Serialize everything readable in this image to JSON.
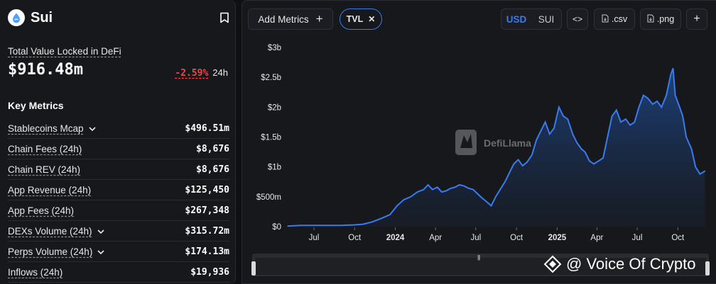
{
  "sidebar": {
    "chain_name": "Sui",
    "tvl_label": "Total Value Locked in DeFi",
    "tvl_value": "$916.48m",
    "tvl_change": "-2.59%",
    "tvl_change_period": "24h",
    "key_metrics_title": "Key Metrics",
    "metrics": [
      {
        "name": "Stablecoins Mcap",
        "value": "$496.51m",
        "expandable": true
      },
      {
        "name": "Chain Fees (24h)",
        "value": "$8,676",
        "expandable": false
      },
      {
        "name": "Chain REV (24h)",
        "value": "$8,676",
        "expandable": false
      },
      {
        "name": "App Revenue (24h)",
        "value": "$125,450",
        "expandable": false
      },
      {
        "name": "App Fees (24h)",
        "value": "$267,348",
        "expandable": false
      },
      {
        "name": "DEXs Volume (24h)",
        "value": "$315.72m",
        "expandable": true
      },
      {
        "name": "Perps Volume (24h)",
        "value": "$174.13m",
        "expandable": true
      },
      {
        "name": "Inflows (24h)",
        "value": "$19,936",
        "expandable": false
      }
    ]
  },
  "toolbar": {
    "add_metrics_label": "Add Metrics",
    "active_metric": "TVL",
    "currency_usd": "USD",
    "currency_sui": "SUI",
    "code_label": "<>",
    "csv_label": ".csv",
    "png_label": ".png",
    "more_label": "+"
  },
  "watermarks": {
    "chart_brand": "DefiLlama",
    "overlay_text": "@ Voice Of Crypto"
  },
  "colors": {
    "accent": "#3a7bf0",
    "negative": "#f0454b",
    "panel_bg": "#17181c",
    "page_bg": "#0f1012"
  },
  "chart_data": {
    "type": "area",
    "title": "",
    "xlabel": "",
    "ylabel": "",
    "y_ticks": [
      "$0",
      "$500m",
      "$1b",
      "$1.5b",
      "$2b",
      "$2.5b",
      "$3b"
    ],
    "ylim": [
      0,
      3.0
    ],
    "y_unit": "billions USD",
    "x_ticks": [
      "Jul",
      "Oct",
      "2024",
      "Apr",
      "Jul",
      "Oct",
      "2025",
      "Apr",
      "Jul",
      "Oct"
    ],
    "x_range": [
      "2023-05",
      "2025-12"
    ],
    "grid": false,
    "series": [
      {
        "values": [
          [
            "2023-05-03",
            0.01
          ],
          [
            "2023-06-01",
            0.02
          ],
          [
            "2023-07-01",
            0.02
          ],
          [
            "2023-08-01",
            0.02
          ],
          [
            "2023-09-01",
            0.02
          ],
          [
            "2023-10-01",
            0.03
          ],
          [
            "2023-10-20",
            0.04
          ],
          [
            "2023-11-10",
            0.08
          ],
          [
            "2023-12-01",
            0.14
          ],
          [
            "2023-12-20",
            0.2
          ],
          [
            "2024-01-05",
            0.35
          ],
          [
            "2024-01-20",
            0.45
          ],
          [
            "2024-02-05",
            0.5
          ],
          [
            "2024-02-20",
            0.58
          ],
          [
            "2024-03-05",
            0.62
          ],
          [
            "2024-03-15",
            0.7
          ],
          [
            "2024-03-25",
            0.62
          ],
          [
            "2024-04-05",
            0.66
          ],
          [
            "2024-04-15",
            0.58
          ],
          [
            "2024-04-25",
            0.6
          ],
          [
            "2024-05-05",
            0.64
          ],
          [
            "2024-05-15",
            0.66
          ],
          [
            "2024-05-25",
            0.7
          ],
          [
            "2024-06-05",
            0.68
          ],
          [
            "2024-06-15",
            0.64
          ],
          [
            "2024-06-25",
            0.62
          ],
          [
            "2024-07-05",
            0.55
          ],
          [
            "2024-07-15",
            0.48
          ],
          [
            "2024-07-25",
            0.42
          ],
          [
            "2024-08-05",
            0.35
          ],
          [
            "2024-08-15",
            0.5
          ],
          [
            "2024-08-25",
            0.62
          ],
          [
            "2024-09-05",
            0.75
          ],
          [
            "2024-09-15",
            0.9
          ],
          [
            "2024-09-25",
            1.05
          ],
          [
            "2024-10-05",
            1.12
          ],
          [
            "2024-10-15",
            1.02
          ],
          [
            "2024-10-25",
            1.08
          ],
          [
            "2024-11-05",
            1.2
          ],
          [
            "2024-11-15",
            1.45
          ],
          [
            "2024-11-25",
            1.6
          ],
          [
            "2024-12-05",
            1.75
          ],
          [
            "2024-12-15",
            1.55
          ],
          [
            "2024-12-25",
            1.65
          ],
          [
            "2025-01-05",
            2.0
          ],
          [
            "2025-01-15",
            1.85
          ],
          [
            "2025-01-25",
            1.8
          ],
          [
            "2025-02-05",
            1.55
          ],
          [
            "2025-02-15",
            1.4
          ],
          [
            "2025-02-25",
            1.3
          ],
          [
            "2025-03-05",
            1.25
          ],
          [
            "2025-03-15",
            1.1
          ],
          [
            "2025-03-25",
            1.05
          ],
          [
            "2025-04-05",
            1.1
          ],
          [
            "2025-04-15",
            1.15
          ],
          [
            "2025-04-25",
            1.5
          ],
          [
            "2025-05-05",
            1.85
          ],
          [
            "2025-05-15",
            1.95
          ],
          [
            "2025-05-25",
            1.75
          ],
          [
            "2025-06-05",
            1.8
          ],
          [
            "2025-06-15",
            1.7
          ],
          [
            "2025-06-25",
            1.75
          ],
          [
            "2025-07-05",
            2.0
          ],
          [
            "2025-07-15",
            2.2
          ],
          [
            "2025-07-25",
            2.15
          ],
          [
            "2025-08-05",
            2.05
          ],
          [
            "2025-08-15",
            2.1
          ],
          [
            "2025-08-25",
            2.0
          ],
          [
            "2025-09-05",
            2.2
          ],
          [
            "2025-09-15",
            2.55
          ],
          [
            "2025-09-20",
            2.65
          ],
          [
            "2025-09-25",
            2.2
          ],
          [
            "2025-10-05",
            2.0
          ],
          [
            "2025-10-12",
            1.85
          ],
          [
            "2025-10-20",
            1.5
          ],
          [
            "2025-11-01",
            1.3
          ],
          [
            "2025-11-10",
            1.0
          ],
          [
            "2025-11-20",
            0.88
          ],
          [
            "2025-12-01",
            0.93
          ]
        ]
      }
    ]
  }
}
